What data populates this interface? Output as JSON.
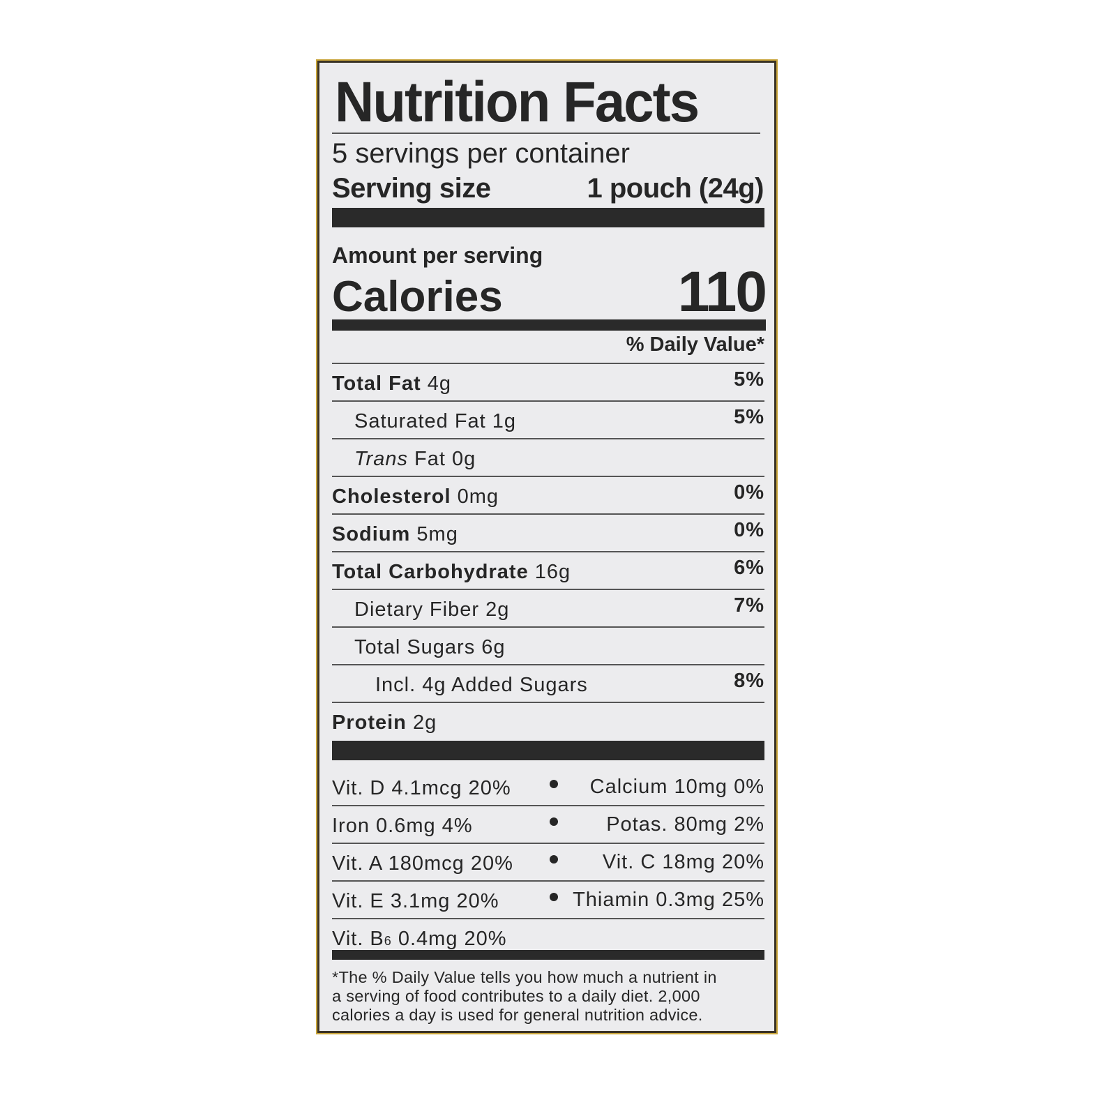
{
  "title": "Nutrition Facts",
  "servings_per_container": "5 servings per container",
  "serving_size_label": "Serving size",
  "serving_size_value": "1 pouch (24g)",
  "amount_per_serving": "Amount per serving",
  "calories_label": "Calories",
  "calories_value": "110",
  "daily_value_header": "% Daily Value*",
  "nutrients": [
    {
      "label": "Total Fat",
      "amount": "4g",
      "dv": "5%",
      "indent": 0,
      "bold": true
    },
    {
      "label": "Saturated Fat",
      "amount": "1g",
      "dv": "5%",
      "indent": 1,
      "bold": false
    },
    {
      "label": "Trans",
      "label_suffix": "Fat",
      "amount": "0g",
      "dv": "",
      "indent": 1,
      "bold": false,
      "italic_label": true
    },
    {
      "label": "Cholesterol",
      "amount": "0mg",
      "dv": "0%",
      "indent": 0,
      "bold": true
    },
    {
      "label": "Sodium",
      "amount": "5mg",
      "dv": "0%",
      "indent": 0,
      "bold": true
    },
    {
      "label": "Total Carbohydrate",
      "amount": "16g",
      "dv": "6%",
      "indent": 0,
      "bold": true
    },
    {
      "label": "Dietary Fiber",
      "amount": "2g",
      "dv": "7%",
      "indent": 1,
      "bold": false
    },
    {
      "label": "Total Sugars",
      "amount": "6g",
      "dv": "",
      "indent": 1,
      "bold": false
    },
    {
      "label": "Incl. 4g Added Sugars",
      "amount": "",
      "dv": "8%",
      "indent": 2,
      "bold": false
    },
    {
      "label": "Protein",
      "amount": "2g",
      "dv": "",
      "indent": 0,
      "bold": true
    }
  ],
  "vitamins": [
    {
      "left": "Vit. D 4.1mcg 20%",
      "right": "Calcium 10mg 0%"
    },
    {
      "left": "Iron 0.6mg 4%",
      "right": "Potas. 80mg 2%"
    },
    {
      "left": "Vit. A 180mcg 20%",
      "right": "Vit. C 18mg 20%"
    },
    {
      "left": "Vit. E 3.1mg 20%",
      "right": "Thiamin 0.3mg 25%"
    }
  ],
  "vit_b6": {
    "prefix": "Vit. B",
    "sub": "6",
    "rest": "0.4mg 20%"
  },
  "footnote": [
    "*The % Daily Value tells you how much a nutrient in",
    "a serving of food contributes to a daily diet. 2,000",
    "calories a day is used for general nutrition advice."
  ]
}
